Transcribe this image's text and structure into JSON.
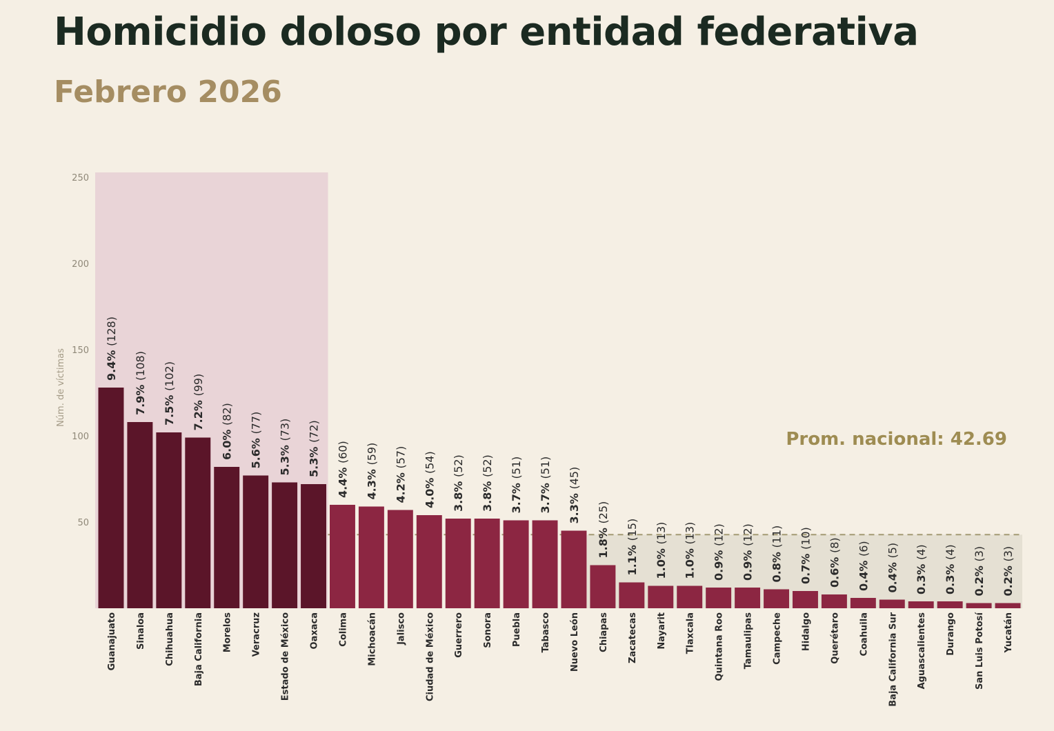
{
  "title": "Homicidio doloso por entidad federativa",
  "subtitle": "Febrero 2026",
  "chart_data": {
    "type": "bar",
    "ylabel": "Núm. de víctimas",
    "xlabel": "",
    "ylim": [
      0,
      250
    ],
    "yticks": [
      50,
      100,
      150,
      200,
      250
    ],
    "grid": false,
    "average": {
      "label": "Prom. nacional: 42.69",
      "value": 42.69
    },
    "highlight_top_count": 8,
    "colors": {
      "top": "#5b1529",
      "rest": "#8c2642",
      "top_region": "#e9d4d7",
      "below_avg_region": "#e5e0d3",
      "average_line": "#a39a73",
      "average_label": "#9e8c52"
    },
    "categories": [
      "Guanajuato",
      "Sinaloa",
      "Chihuahua",
      "Baja California",
      "Morelos",
      "Veracruz",
      "Estado de México",
      "Oaxaca",
      "Colima",
      "Michoacán",
      "Jalisco",
      "Ciudad de México",
      "Guerrero",
      "Sonora",
      "Puebla",
      "Tabasco",
      "Nuevo León",
      "Chiapas",
      "Zacatecas",
      "Nayarit",
      "Tlaxcala",
      "Quintana Roo",
      "Tamaulipas",
      "Campeche",
      "Hidalgo",
      "Querétaro",
      "Coahuila",
      "Baja California Sur",
      "Aguascalientes",
      "Durango",
      "San Luis Potosí",
      "Yucatán"
    ],
    "values": [
      128,
      108,
      102,
      99,
      82,
      77,
      73,
      72,
      60,
      59,
      57,
      54,
      52,
      52,
      51,
      51,
      45,
      25,
      15,
      13,
      13,
      12,
      12,
      11,
      10,
      8,
      6,
      5,
      4,
      4,
      3,
      3
    ],
    "percents": [
      "9.4%",
      "7.9%",
      "7.5%",
      "7.2%",
      "6.0%",
      "5.6%",
      "5.3%",
      "5.3%",
      "4.4%",
      "4.3%",
      "4.2%",
      "4.0%",
      "3.8%",
      "3.8%",
      "3.7%",
      "3.7%",
      "3.3%",
      "1.8%",
      "1.1%",
      "1.0%",
      "1.0%",
      "0.9%",
      "0.9%",
      "0.8%",
      "0.7%",
      "0.6%",
      "0.4%",
      "0.4%",
      "0.3%",
      "0.3%",
      "0.2%",
      "0.2%"
    ]
  }
}
